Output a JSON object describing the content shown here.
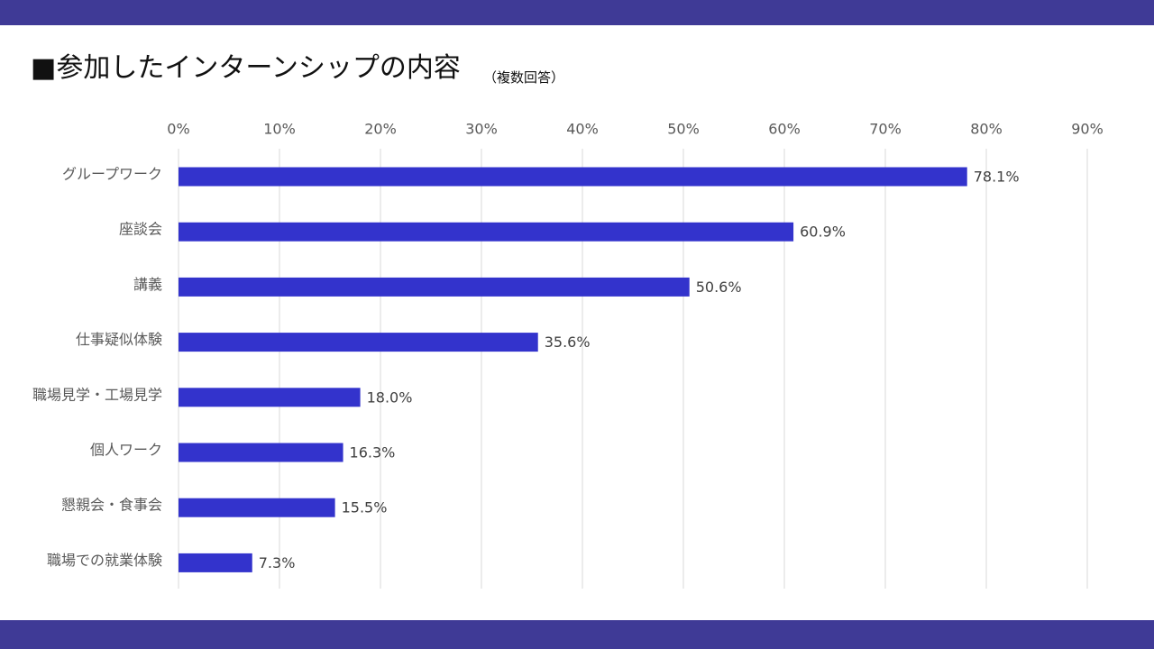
{
  "colors": {
    "frame_bar": "#3f3a96",
    "bar": "#3333cc",
    "grid": "#d9d9d9",
    "background": "#ffffff"
  },
  "header": {
    "title": "■参加したインターンシップの内容",
    "subtitle": "（複数回答）"
  },
  "chart_data": {
    "type": "bar",
    "orientation": "horizontal",
    "categories": [
      "グループワーク",
      "座談会",
      "講義",
      "仕事疑似体験",
      "職場見学・工場見学",
      "個人ワーク",
      "懇親会・食事会",
      "職場での就業体験"
    ],
    "values": [
      78.1,
      60.9,
      50.6,
      35.6,
      18.0,
      16.3,
      15.5,
      7.3
    ],
    "value_labels": [
      "78.1%",
      "60.9%",
      "50.6%",
      "35.6%",
      "18.0%",
      "16.3%",
      "15.5%",
      "7.3%"
    ],
    "xlim": [
      0,
      90
    ],
    "x_ticks": [
      0,
      10,
      20,
      30,
      40,
      50,
      60,
      70,
      80,
      90
    ],
    "x_tick_labels": [
      "0%",
      "10%",
      "20%",
      "30%",
      "40%",
      "50%",
      "60%",
      "70%",
      "80%",
      "90%"
    ],
    "x_axis_position": "top",
    "grid": true,
    "legend": "none"
  }
}
